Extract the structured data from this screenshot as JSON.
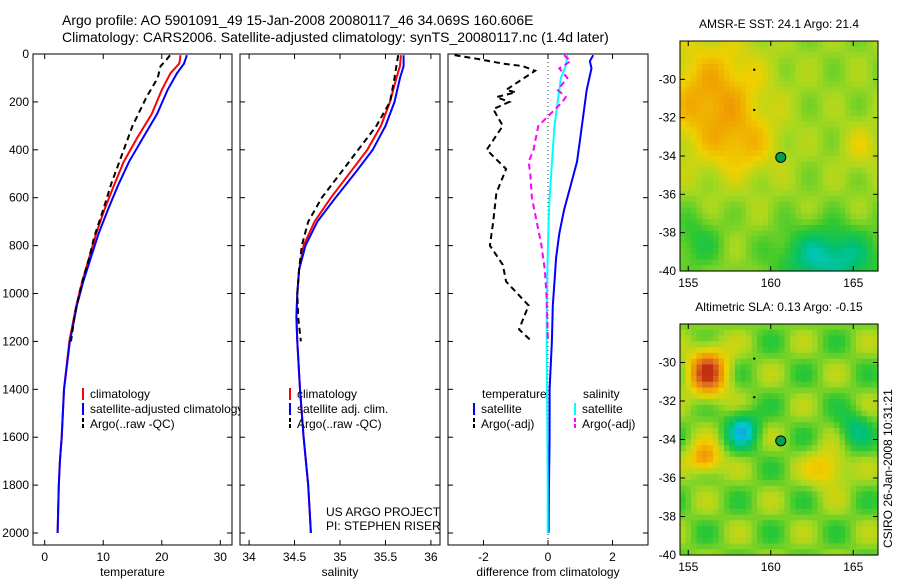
{
  "header": {
    "line1": "Argo profile: AO 5901091_49 15-Jan-2008 20080117_46 34.069S 160.606E",
    "line2": "Climatology: CARS2006. Satellite-adjusted climatology: synTS_20080117.nc (1.4d later)"
  },
  "credit": {
    "line1": "US ARGO PROJECT",
    "line2": "PI: STEPHEN RISER"
  },
  "stamp": "CSIRO 26-Jan-2008 10:31:21",
  "colors": {
    "climatology": "#ff0000",
    "satellite": "#0000ff",
    "argo": "#000000",
    "sal_satellite": "#00ffff",
    "sal_argo": "#ff00ff",
    "marker": "#00a050"
  },
  "chart_data": [
    {
      "type": "line",
      "xlabel": "temperature",
      "ylabel": "",
      "xlim": [
        -2,
        32
      ],
      "ylim": [
        2050,
        0
      ],
      "xticks": [
        "0",
        "10",
        "20",
        "30"
      ],
      "yticks": [
        "0",
        "200",
        "400",
        "600",
        "800",
        "1000",
        "1200",
        "1400",
        "1600",
        "1800",
        "2000"
      ],
      "legend": [
        "climatology",
        "satellite-adjusted climatology",
        "Argo(..raw -QC)"
      ],
      "series": [
        {
          "name": "climatology",
          "color": "#ff0000",
          "dash": "",
          "x": [
            23.2,
            23.0,
            21.5,
            20.0,
            18.3,
            15.8,
            13.5,
            11.8,
            10.2,
            8.8,
            7.6,
            6.4,
            5.4,
            4.2,
            3.3,
            2.9,
            2.6,
            2.4,
            2.3,
            2.2
          ],
          "y": [
            5,
            40,
            80,
            150,
            250,
            350,
            450,
            550,
            650,
            750,
            850,
            950,
            1050,
            1200,
            1400,
            1600,
            1700,
            1800,
            1900,
            2000
          ]
        },
        {
          "name": "satellite-adjusted climatology",
          "color": "#0000ff",
          "dash": "",
          "x": [
            24.3,
            23.8,
            22.6,
            21.0,
            19.2,
            16.8,
            14.4,
            12.5,
            10.8,
            9.2,
            7.9,
            6.6,
            5.5,
            4.3,
            3.3,
            2.9,
            2.6,
            2.4,
            2.3,
            2.2
          ],
          "y": [
            5,
            40,
            80,
            150,
            250,
            350,
            450,
            550,
            650,
            750,
            850,
            950,
            1050,
            1200,
            1400,
            1600,
            1700,
            1800,
            1900,
            2000
          ]
        },
        {
          "name": "Argo(..raw -QC)",
          "color": "#000000",
          "dash": "6,4",
          "x": [
            21.4,
            20.6,
            19.8,
            19.5,
            19.3,
            17.4,
            15.0,
            13.2,
            11.4,
            10.0,
            8.5,
            7.5,
            6.3,
            5.2,
            4.5
          ],
          "y": [
            5,
            30,
            50,
            80,
            100,
            180,
            300,
            420,
            540,
            650,
            760,
            860,
            960,
            1080,
            1200
          ]
        }
      ]
    },
    {
      "type": "line",
      "xlabel": "salinity",
      "ylabel": "",
      "xlim": [
        33.9,
        36.1
      ],
      "ylim": [
        2050,
        0
      ],
      "xticks": [
        "34",
        "34.5",
        "35",
        "35.5",
        "36"
      ],
      "legend": [
        "climatology",
        "satellite adj. clim.",
        "Argo(..raw -QC)"
      ],
      "series": [
        {
          "name": "climatology",
          "color": "#ff0000",
          "dash": "",
          "x": [
            35.67,
            35.66,
            35.62,
            35.55,
            35.45,
            35.3,
            35.1,
            34.9,
            34.72,
            34.6,
            34.55,
            34.53,
            34.52,
            34.53,
            34.56,
            34.6,
            34.65,
            34.68
          ],
          "y": [
            5,
            50,
            100,
            200,
            300,
            400,
            500,
            600,
            700,
            800,
            900,
            1000,
            1100,
            1200,
            1400,
            1600,
            1800,
            2000
          ]
        },
        {
          "name": "satellite adj. clim.",
          "color": "#0000ff",
          "dash": "",
          "x": [
            35.7,
            35.7,
            35.66,
            35.6,
            35.5,
            35.36,
            35.16,
            34.95,
            34.75,
            34.62,
            34.55,
            34.53,
            34.52,
            34.53,
            34.56,
            34.6,
            34.65,
            34.68
          ],
          "y": [
            5,
            50,
            100,
            200,
            300,
            400,
            500,
            600,
            700,
            800,
            900,
            1000,
            1100,
            1200,
            1400,
            1600,
            1800,
            2000
          ]
        },
        {
          "name": "Argo(..raw -QC)",
          "color": "#000000",
          "dash": "6,4",
          "x": [
            35.64,
            35.62,
            35.6,
            35.55,
            35.4,
            35.2,
            35.0,
            34.8,
            34.65,
            34.58,
            34.55,
            34.53,
            34.54,
            34.57
          ],
          "y": [
            5,
            50,
            100,
            200,
            300,
            400,
            500,
            600,
            700,
            800,
            900,
            1000,
            1100,
            1200
          ]
        }
      ]
    },
    {
      "type": "line",
      "xlabel": "difference from climatology",
      "ylabel": "",
      "xlim": [
        -3.1,
        3.1
      ],
      "ylim": [
        2050,
        0
      ],
      "xticks": [
        "-2",
        "0",
        "2"
      ],
      "legend_titles": [
        "temperature",
        "salinity"
      ],
      "legend": [
        "satellite",
        "Argo(-adj)",
        "satellite",
        "Argo(-adj)"
      ],
      "series": [
        {
          "name": "satellite",
          "group": "temperature",
          "color": "#0000ff",
          "dash": "",
          "x": [
            1.4,
            1.3,
            1.35,
            1.2,
            1.1,
            1.0,
            0.9,
            0.7,
            0.5,
            0.35,
            0.25,
            0.2,
            0.15,
            0.12,
            0.05,
            0.05,
            0.03,
            0.02
          ],
          "y": [
            5,
            30,
            60,
            150,
            250,
            350,
            450,
            550,
            650,
            750,
            850,
            950,
            1050,
            1200,
            1400,
            1600,
            1800,
            2000
          ]
        },
        {
          "name": "Argo(-adj)",
          "group": "temperature",
          "color": "#000000",
          "dash": "6,4",
          "x": [
            -2.9,
            -2.2,
            -1.4,
            -0.8,
            -0.4,
            -1.3,
            -1.0,
            -1.6,
            -1.2,
            -1.7,
            -1.4,
            -1.9,
            -1.3,
            -1.6,
            -1.7,
            -1.8,
            -1.4,
            -1.3,
            -0.6,
            -0.9,
            -0.5
          ],
          "y": [
            5,
            20,
            40,
            50,
            70,
            150,
            160,
            180,
            200,
            230,
            300,
            400,
            480,
            580,
            700,
            800,
            880,
            950,
            1050,
            1150,
            1200
          ]
        },
        {
          "name": "satellite",
          "group": "salinity",
          "color": "#00ffff",
          "dash": "",
          "x": [
            0.6,
            0.55,
            0.4,
            0.3,
            0.2,
            0.15,
            0.1,
            0.05,
            0.02,
            0.0,
            -0.02,
            -0.03,
            -0.04,
            -0.04,
            -0.03,
            -0.02,
            -0.01,
            -0.01
          ],
          "y": [
            5,
            50,
            100,
            200,
            300,
            400,
            500,
            600,
            700,
            800,
            900,
            1000,
            1100,
            1200,
            1400,
            1600,
            1800,
            2000
          ]
        },
        {
          "name": "Argo(-adj)",
          "group": "salinity",
          "color": "#ff00ff",
          "dash": "6,4",
          "x": [
            0.5,
            0.7,
            0.35,
            0.6,
            0.3,
            0.55,
            0.45,
            -0.3,
            -0.45,
            -0.6,
            -0.55,
            -0.5,
            -0.35,
            -0.2,
            -0.1,
            -0.05,
            0.0
          ],
          "y": [
            5,
            30,
            60,
            100,
            150,
            180,
            200,
            300,
            400,
            450,
            500,
            600,
            700,
            800,
            900,
            1000,
            1200
          ]
        }
      ]
    },
    {
      "type": "heatmap",
      "title": "AMSR-E SST: 24.1 Argo: 21.4",
      "xlim": [
        154.5,
        166.5
      ],
      "ylim": [
        -40,
        -28
      ],
      "xticks": [
        "155",
        "160",
        "165"
      ],
      "yticks": [
        "-30",
        "-32",
        "-34",
        "-36",
        "-38",
        "-40"
      ],
      "argo_position": {
        "lon": 160.606,
        "lat": -34.069
      },
      "track_points": [
        {
          "lon": 159.0,
          "lat": -29.5
        },
        {
          "lon": 159.0,
          "lat": -31.6
        }
      ],
      "colormap": [
        "#3a6fd8",
        "#00c8e0",
        "#00c070",
        "#30c830",
        "#a8d820",
        "#f0d000",
        "#f0a000",
        "#e07020"
      ]
    },
    {
      "type": "heatmap",
      "title": "Altimetric SLA: 0.13 Argo: -0.15",
      "xlim": [
        154.5,
        166.5
      ],
      "ylim": [
        -40,
        -28
      ],
      "xticks": [
        "155",
        "160",
        "165"
      ],
      "yticks": [
        "-30",
        "-32",
        "-34",
        "-36",
        "-38",
        "-40"
      ],
      "argo_position": {
        "lon": 160.606,
        "lat": -34.069
      },
      "track_points": [
        {
          "lon": 159.0,
          "lat": -29.8
        },
        {
          "lon": 159.0,
          "lat": -31.8
        }
      ],
      "colormap": [
        "#3a6fd8",
        "#00c8e0",
        "#00c070",
        "#30c830",
        "#a8d820",
        "#f0d000",
        "#f0a000",
        "#e07020",
        "#c03010"
      ]
    }
  ]
}
